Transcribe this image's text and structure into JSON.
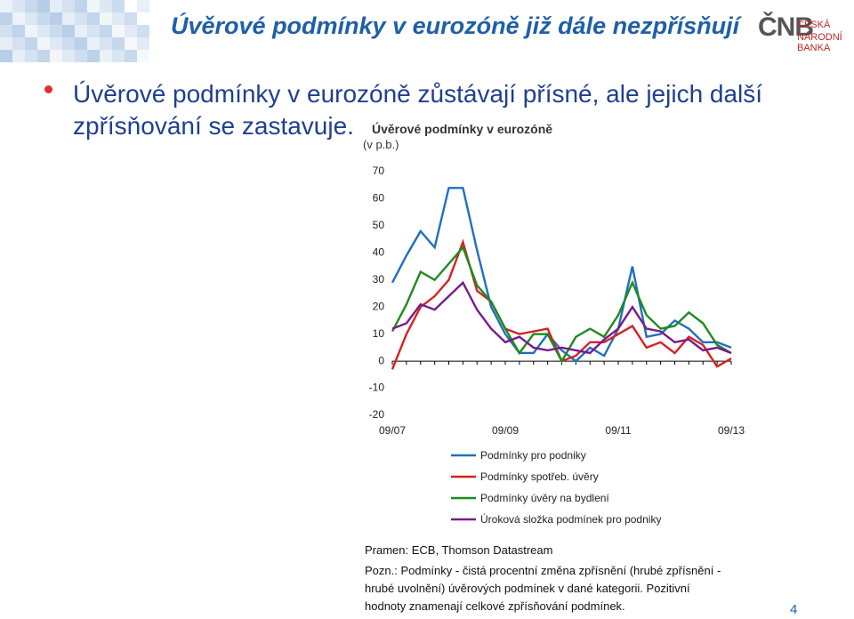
{
  "header": {
    "title": "Úvěrové podmínky v eurozóně již dále nezpřísňují",
    "logo_mark": "ČNB",
    "logo_line1": "ČESKÁ",
    "logo_line2": "NÁRODNÍ BANKA"
  },
  "bullet": "Úvěrové podmínky v eurozóně zůstávají přísné, ale jejich další zpřísňování se zastavuje.",
  "chart_data": {
    "type": "line",
    "title": "Úvěrové podmínky v eurozóně",
    "subtitle": "(v p.b.)",
    "categories": [
      "09/07",
      null,
      null,
      null,
      null,
      null,
      null,
      null,
      "09/09",
      null,
      null,
      null,
      null,
      null,
      null,
      null,
      "09/11",
      null,
      null,
      null,
      null,
      null,
      null,
      null,
      "09/13"
    ],
    "series": [
      {
        "name": "Podmínky pro podniky",
        "color": "#1f6fc0",
        "values": [
          29,
          39,
          48,
          42,
          64,
          64,
          41,
          20,
          10,
          3,
          3,
          10,
          4,
          0,
          5,
          2,
          12,
          35,
          9,
          10,
          15,
          12,
          7,
          7,
          5
        ]
      },
      {
        "name": "Podmínky spotřeb. úvěry",
        "color": "#d42222",
        "values": [
          -3,
          10,
          20,
          24,
          30,
          44,
          26,
          22,
          12,
          10,
          11,
          12,
          0,
          2,
          7,
          7,
          10,
          13,
          5,
          7,
          3,
          9,
          6,
          -2,
          1
        ]
      },
      {
        "name": "Podmínky úvěry na bydlení",
        "color": "#1e8a1e",
        "values": [
          11,
          21,
          33,
          30,
          36,
          42,
          28,
          22,
          12,
          3,
          10,
          10,
          0,
          9,
          12,
          9,
          17,
          29,
          17,
          12,
          13,
          18,
          14,
          6,
          3
        ]
      },
      {
        "name": "Úroková složka podmínek pro podniky",
        "color": "#7a1a8a",
        "values": [
          12,
          14,
          21,
          19,
          24,
          29,
          19,
          12,
          7,
          9,
          5,
          4,
          5,
          4,
          3,
          8,
          12,
          20,
          12,
          11,
          7,
          8,
          4,
          5,
          3
        ]
      }
    ],
    "ylim": [
      -20,
      70
    ],
    "yticks": [
      -20,
      -10,
      0,
      10,
      20,
      30,
      40,
      50,
      60,
      70
    ],
    "grid": false
  },
  "source": "Pramen: ECB, Thomson Datastream",
  "note": [
    "Pozn.: Podmínky - čistá procentní změna zpřísnění (hrubé zpřísnění -",
    "hrubé uvolnění) úvěrových podmínek v dané kategorii. Pozitivní",
    "hodnoty znamenají celkové zpřísňování podmínek."
  ],
  "page_number": "4"
}
